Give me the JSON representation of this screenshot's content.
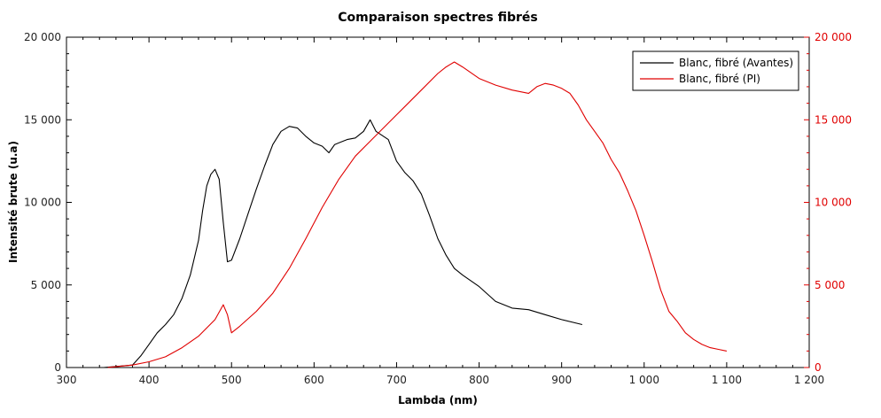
{
  "chart_data": {
    "type": "line",
    "title": "Comparaison spectres fibrés",
    "xlabel": "Lambda (nm)",
    "ylabel": "Intensité brute (u.a)",
    "xlim": [
      300,
      1200
    ],
    "ylim": [
      0,
      20000
    ],
    "y2lim": [
      0,
      20000
    ],
    "x_ticks": [
      "300",
      "400",
      "500",
      "600",
      "700",
      "800",
      "900",
      "1 000",
      "1 100",
      "1 200"
    ],
    "y_ticks": [
      "0",
      "5 000",
      "10 000",
      "15 000",
      "20 000"
    ],
    "y2_ticks": [
      "0",
      "5 000",
      "10 000",
      "15 000",
      "20 000"
    ],
    "grid": false,
    "legend_position": "top-right",
    "series": [
      {
        "name": "Blanc, fibré (Avantes)",
        "color": "#000000",
        "axis": "left",
        "x": [
          345,
          380,
          390,
          400,
          410,
          420,
          430,
          440,
          450,
          460,
          465,
          470,
          475,
          480,
          485,
          490,
          495,
          500,
          510,
          520,
          530,
          540,
          550,
          560,
          570,
          580,
          590,
          600,
          610,
          618,
          625,
          640,
          650,
          660,
          668,
          675,
          690,
          700,
          710,
          720,
          730,
          740,
          750,
          760,
          770,
          780,
          800,
          820,
          840,
          860,
          880,
          900,
          925
        ],
        "values": [
          0,
          150,
          700,
          1400,
          2100,
          2600,
          3200,
          4200,
          5600,
          7700,
          9500,
          11000,
          11700,
          12000,
          11400,
          8800,
          6400,
          6500,
          7800,
          9300,
          10800,
          12200,
          13500,
          14300,
          14600,
          14500,
          14000,
          13600,
          13400,
          13000,
          13500,
          13800,
          13900,
          14300,
          15000,
          14300,
          13800,
          12500,
          11800,
          11300,
          10500,
          9200,
          7800,
          6800,
          6000,
          5600,
          4900,
          4000,
          3600,
          3500,
          3200,
          2900,
          2600
        ]
      },
      {
        "name": "Blanc, fibré (PI)",
        "color": "#e00000",
        "axis": "right",
        "x": [
          350,
          380,
          400,
          420,
          440,
          460,
          480,
          490,
          495,
          500,
          510,
          530,
          550,
          570,
          590,
          610,
          630,
          650,
          670,
          690,
          710,
          730,
          750,
          760,
          770,
          780,
          800,
          820,
          840,
          860,
          870,
          880,
          890,
          900,
          910,
          920,
          930,
          940,
          950,
          960,
          970,
          980,
          990,
          1000,
          1010,
          1020,
          1030,
          1040,
          1050,
          1060,
          1070,
          1080,
          1090,
          1100
        ],
        "values": [
          0,
          150,
          350,
          650,
          1200,
          1900,
          2900,
          3800,
          3200,
          2100,
          2500,
          3400,
          4500,
          6000,
          7800,
          9700,
          11400,
          12800,
          13800,
          14800,
          15800,
          16800,
          17800,
          18200,
          18500,
          18200,
          17500,
          17100,
          16800,
          16600,
          17000,
          17200,
          17100,
          16900,
          16600,
          15900,
          15000,
          14300,
          13600,
          12600,
          11800,
          10700,
          9500,
          8000,
          6400,
          4700,
          3400,
          2800,
          2100,
          1700,
          1400,
          1200,
          1100,
          1000
        ]
      }
    ]
  }
}
